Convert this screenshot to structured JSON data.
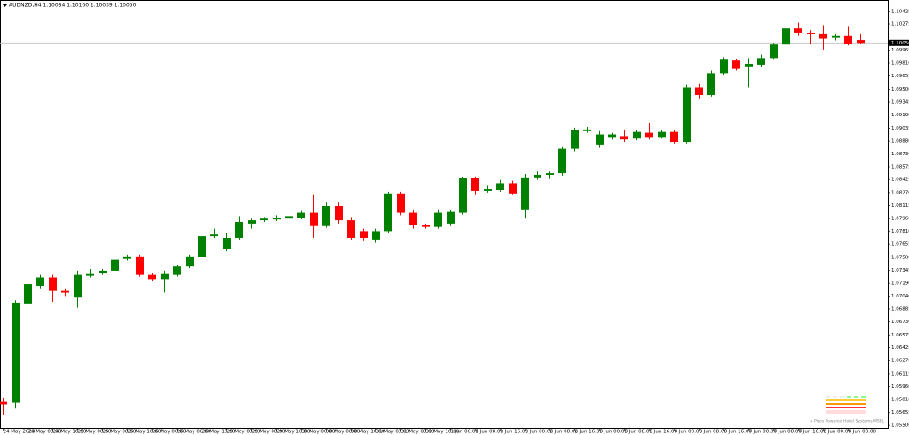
{
  "chart_data": {
    "type": "candlestick",
    "title": "AUDNZD,H4  1.10084 1.10160 1.10039 1.10050",
    "watermark": "» Price Powered Hotel Systems MSPL",
    "up_color": "#008000",
    "down_color": "#ff0000",
    "grid": false,
    "last_price": {
      "value": 1.1005,
      "label": "1.10050"
    },
    "ylim": [
      1.0547,
      1.1056
    ],
    "yticks": [
      {
        "value": 1.10425,
        "label": "1.10425"
      },
      {
        "value": 1.10275,
        "label": "1.10275"
      },
      {
        "value": 1.09965,
        "label": "1.09965"
      },
      {
        "value": 1.0981,
        "label": "1.09810"
      },
      {
        "value": 1.09655,
        "label": "1.09655"
      },
      {
        "value": 1.095,
        "label": "1.09500"
      },
      {
        "value": 1.09345,
        "label": "1.09345"
      },
      {
        "value": 1.0919,
        "label": "1.09190"
      },
      {
        "value": 1.09035,
        "label": "1.09035"
      },
      {
        "value": 1.0888,
        "label": "1.08880"
      },
      {
        "value": 1.0873,
        "label": "1.08730"
      },
      {
        "value": 1.08575,
        "label": "1.08575"
      },
      {
        "value": 1.08425,
        "label": "1.08425"
      },
      {
        "value": 1.0827,
        "label": "1.08270"
      },
      {
        "value": 1.08115,
        "label": "1.08115"
      },
      {
        "value": 1.0796,
        "label": "1.07960"
      },
      {
        "value": 1.0781,
        "label": "1.07810"
      },
      {
        "value": 1.07655,
        "label": "1.07655"
      },
      {
        "value": 1.075,
        "label": "1.07500"
      },
      {
        "value": 1.07345,
        "label": "1.07345"
      },
      {
        "value": 1.0719,
        "label": "1.07190"
      },
      {
        "value": 1.0704,
        "label": "1.07040"
      },
      {
        "value": 1.06885,
        "label": "1.06885"
      },
      {
        "value": 1.0673,
        "label": "1.06730"
      },
      {
        "value": 1.06575,
        "label": "1.06575"
      },
      {
        "value": 1.06425,
        "label": "1.06425"
      },
      {
        "value": 1.0627,
        "label": "1.06270"
      },
      {
        "value": 1.06115,
        "label": "1.06115"
      },
      {
        "value": 1.0596,
        "label": "1.05960"
      },
      {
        "value": 1.0581,
        "label": "1.05810"
      },
      {
        "value": 1.05655,
        "label": "1.05655"
      },
      {
        "value": 1.055,
        "label": "1.05500"
      }
    ],
    "categories": [
      "24 May 2023",
      null,
      "24 May 08:00",
      null,
      "24 May 16:00",
      null,
      "25 May 00:00",
      null,
      "25 May 08:00",
      null,
      "25 May 16:00",
      null,
      "26 May 00:00",
      null,
      "26 May 08:00",
      null,
      "26 May 16:00",
      null,
      "29 May 00:00",
      null,
      "29 May 08:00",
      null,
      "29 May 16:00",
      null,
      "30 May 00:00",
      null,
      "30 May 08:00",
      null,
      "30 May 16:00",
      null,
      "31 May 00:00",
      null,
      "31 May 08:00",
      null,
      "31 May 16:00",
      null,
      "1 Jun 00:00",
      null,
      "1 Jun 08:00",
      null,
      "1 Jun 16:00",
      null,
      "2 Jun 00:00",
      null,
      "2 Jun 08:00",
      null,
      "2 Jun 16:00",
      null,
      "5 Jun 00:00",
      null,
      "5 Jun 08:00",
      null,
      "5 Jun 16:00",
      null,
      "6 Jun 00:00",
      null,
      "6 Jun 08:00",
      null,
      "6 Jun 16:00",
      null,
      "7 Jun 00:00",
      null,
      "7 Jun 08:00",
      null,
      "7 Jun 16:00",
      null,
      "8 Jun 00:00",
      null,
      "8 Jun 08:00",
      null
    ],
    "open": [
      1.0578,
      1.0577,
      1.0695,
      1.0716,
      1.0726,
      1.071,
      1.0702,
      1.0728,
      1.0731,
      1.0734,
      1.0748,
      1.0751,
      1.0729,
      1.0724,
      1.0729,
      1.0739,
      1.075,
      1.0775,
      1.076,
      1.0773,
      1.079,
      1.0794,
      1.0795,
      1.0796,
      1.0797,
      1.0803,
      1.0787,
      1.0811,
      1.0794,
      1.0781,
      1.0771,
      1.0781,
      1.0826,
      1.0803,
      1.0788,
      1.0786,
      1.079,
      1.0803,
      1.0844,
      1.0829,
      1.083,
      1.0838,
      1.0807,
      1.0845,
      1.0848,
      1.085,
      1.0879,
      1.09,
      1.0884,
      1.0893,
      1.0894,
      1.0891,
      1.0898,
      1.0893,
      1.0899,
      1.0887,
      1.0952,
      1.0943,
      1.0969,
      1.0984,
      1.0977,
      1.0979,
      1.0987,
      1.1003,
      1.1022,
      1.1017,
      1.1016,
      1.1011,
      1.1014,
      1.10084
    ],
    "high": [
      1.0583,
      1.0699,
      1.0722,
      1.0729,
      1.0729,
      1.0713,
      1.0734,
      1.0736,
      1.0736,
      1.075,
      1.0753,
      1.0753,
      1.0731,
      1.0734,
      1.0741,
      1.0753,
      1.0777,
      1.0784,
      1.0779,
      1.0799,
      1.0796,
      1.0798,
      1.08,
      1.0801,
      1.0805,
      1.0824,
      1.0815,
      1.0815,
      1.0798,
      1.0784,
      1.0784,
      1.0828,
      1.0828,
      1.0806,
      1.079,
      1.0807,
      1.0806,
      1.0846,
      1.0846,
      1.0836,
      1.0842,
      1.0841,
      1.0849,
      1.0852,
      1.0852,
      1.0881,
      1.0904,
      1.0905,
      1.09,
      1.0898,
      1.0902,
      1.0901,
      1.091,
      1.0901,
      1.0901,
      1.0955,
      1.0956,
      1.0972,
      1.0988,
      1.0986,
      1.0987,
      1.0991,
      1.1005,
      1.1024,
      1.1029,
      1.102,
      1.1026,
      1.1016,
      1.1025,
      1.1016
    ],
    "low": [
      1.0562,
      1.057,
      1.0693,
      1.0713,
      1.0697,
      1.0704,
      1.069,
      1.0726,
      1.0729,
      1.0732,
      1.0746,
      1.0727,
      1.0722,
      1.0708,
      1.0727,
      1.0737,
      1.0748,
      1.0773,
      1.0757,
      1.0771,
      1.0784,
      1.0792,
      1.0793,
      1.0794,
      1.0795,
      1.0773,
      1.0785,
      1.079,
      1.0771,
      1.077,
      1.0767,
      1.0779,
      1.08,
      1.0784,
      1.0784,
      1.0784,
      1.0787,
      1.0801,
      1.0824,
      1.0827,
      1.0828,
      1.0824,
      1.0796,
      1.0842,
      1.0843,
      1.0847,
      1.0876,
      1.0898,
      1.088,
      1.089,
      1.0887,
      1.0889,
      1.089,
      1.0891,
      1.0885,
      1.0885,
      1.0939,
      1.0941,
      1.0967,
      1.0972,
      1.0952,
      1.0976,
      1.0985,
      1.1001,
      1.1014,
      1.1004,
      1.0997,
      1.1008,
      1.1002,
      1.10039
    ],
    "close": [
      1.0575,
      1.0696,
      1.0718,
      1.0726,
      1.071,
      1.0708,
      1.0729,
      1.073,
      1.0734,
      1.0747,
      1.0751,
      1.0729,
      1.0724,
      1.073,
      1.0739,
      1.0751,
      1.0775,
      1.0777,
      1.0773,
      1.0792,
      1.0794,
      1.0796,
      1.0797,
      1.0799,
      1.0803,
      1.0787,
      1.0811,
      1.0794,
      1.0773,
      1.0773,
      1.0781,
      1.0826,
      1.0803,
      1.0788,
      1.0786,
      1.0803,
      1.0804,
      1.0844,
      1.0829,
      1.0831,
      1.0838,
      1.0826,
      1.0845,
      1.0848,
      1.085,
      1.0879,
      1.0901,
      1.0902,
      1.0896,
      1.0896,
      1.089,
      1.0899,
      1.0893,
      1.0899,
      1.0887,
      1.0952,
      1.0943,
      1.0969,
      1.0985,
      1.0974,
      1.098,
      1.0987,
      1.1003,
      1.1022,
      1.1017,
      1.1016,
      1.101,
      1.1014,
      1.1004,
      1.1005
    ]
  }
}
